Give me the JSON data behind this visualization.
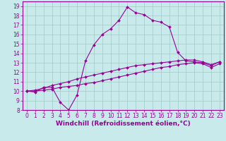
{
  "xlabel": "Windchill (Refroidissement éolien,°C)",
  "bg_color": "#c8eaea",
  "line_color": "#990099",
  "grid_color": "#a0c8c8",
  "ylim": [
    8,
    19.5
  ],
  "xlim": [
    -0.5,
    23.5
  ],
  "yticks": [
    8,
    9,
    10,
    11,
    12,
    13,
    14,
    15,
    16,
    17,
    18,
    19
  ],
  "xticks": [
    0,
    1,
    2,
    3,
    4,
    5,
    6,
    7,
    8,
    9,
    10,
    11,
    12,
    13,
    14,
    15,
    16,
    17,
    18,
    19,
    20,
    21,
    22,
    23
  ],
  "line1_x": [
    0,
    1,
    2,
    3,
    4,
    5,
    6,
    7,
    8,
    9,
    10,
    11,
    12,
    13,
    14,
    15,
    16,
    17,
    18,
    19,
    20,
    21,
    22,
    23
  ],
  "line1_y": [
    10.0,
    9.9,
    10.4,
    10.4,
    8.8,
    8.0,
    9.6,
    13.2,
    14.9,
    16.0,
    16.6,
    17.5,
    18.9,
    18.3,
    18.1,
    17.5,
    17.3,
    16.8,
    14.1,
    13.2,
    13.1,
    13.0,
    12.7,
    13.1
  ],
  "line2_x": [
    0,
    1,
    2,
    3,
    4,
    5,
    6,
    7,
    8,
    9,
    10,
    11,
    12,
    13,
    14,
    15,
    16,
    17,
    18,
    19,
    20,
    21,
    22,
    23
  ],
  "line2_y": [
    10.0,
    10.1,
    10.3,
    10.6,
    10.8,
    11.0,
    11.3,
    11.5,
    11.7,
    11.9,
    12.1,
    12.3,
    12.5,
    12.7,
    12.8,
    12.9,
    13.0,
    13.1,
    13.2,
    13.3,
    13.3,
    13.1,
    12.8,
    13.1
  ],
  "line3_x": [
    0,
    1,
    2,
    3,
    4,
    5,
    6,
    7,
    8,
    9,
    10,
    11,
    12,
    13,
    14,
    15,
    16,
    17,
    18,
    19,
    20,
    21,
    22,
    23
  ],
  "line3_y": [
    10.0,
    10.0,
    10.1,
    10.2,
    10.4,
    10.5,
    10.6,
    10.8,
    10.9,
    11.1,
    11.3,
    11.5,
    11.7,
    11.9,
    12.1,
    12.3,
    12.5,
    12.6,
    12.8,
    12.9,
    13.0,
    12.9,
    12.5,
    12.9
  ],
  "xlabel_fontsize": 6.5,
  "tick_fontsize": 5.5,
  "marker": "D",
  "markersize": 2.0,
  "linewidth": 0.8
}
